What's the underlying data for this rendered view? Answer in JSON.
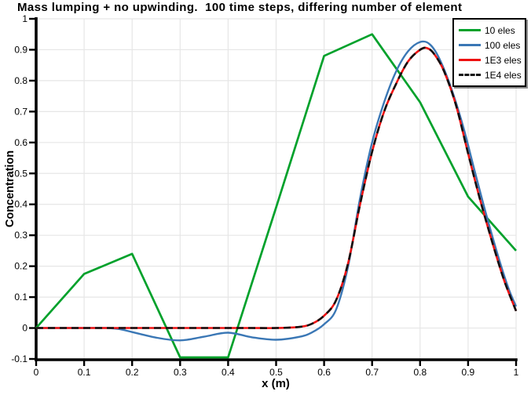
{
  "title": "Mass lumping + no upwinding.  100 time steps, differing number of element",
  "axes": {
    "x": {
      "label": "x (m)"
    },
    "y": {
      "label": "Concentration"
    }
  },
  "legend": {
    "items": [
      {
        "label": "10 eles",
        "color": "#00a12b",
        "style": "solid"
      },
      {
        "label": "100 eles",
        "color": "#3a77b5",
        "style": "solid"
      },
      {
        "label": "1E3 eles",
        "color": "#ed1111",
        "style": "solid"
      },
      {
        "label": "1E4 eles",
        "color": "#111111",
        "style": "dashed"
      }
    ]
  },
  "chart_data": {
    "type": "line",
    "title": "Mass lumping + no upwinding.  100 time steps, differing number of element",
    "xlabel": "x (m)",
    "ylabel": "Concentration",
    "xlim": [
      0,
      1
    ],
    "ylim": [
      -0.1,
      1.0
    ],
    "grid": true,
    "legend_position": "top-right",
    "x_ticks": [
      {
        "v": 0,
        "label": "0"
      },
      {
        "v": 0.1,
        "label": "0.1"
      },
      {
        "v": 0.2,
        "label": "0.2"
      },
      {
        "v": 0.3,
        "label": "0.3"
      },
      {
        "v": 0.4,
        "label": "0.4"
      },
      {
        "v": 0.5,
        "label": "0.5"
      },
      {
        "v": 0.6,
        "label": "0.6"
      },
      {
        "v": 0.7,
        "label": "0.7"
      },
      {
        "v": 0.8,
        "label": "0.8"
      },
      {
        "v": 0.9,
        "label": "0.9"
      },
      {
        "v": 1,
        "label": "1"
      }
    ],
    "y_ticks": [
      {
        "v": -0.1,
        "label": "-0.1"
      },
      {
        "v": 0,
        "label": "0"
      },
      {
        "v": 0.1,
        "label": "0.1"
      },
      {
        "v": 0.2,
        "label": "0.2"
      },
      {
        "v": 0.3,
        "label": "0.3"
      },
      {
        "v": 0.4,
        "label": "0.4"
      },
      {
        "v": 0.5,
        "label": "0.5"
      },
      {
        "v": 0.6,
        "label": "0.6"
      },
      {
        "v": 0.7,
        "label": "0.7"
      },
      {
        "v": 0.8,
        "label": "0.8"
      },
      {
        "v": 0.9,
        "label": "0.9"
      },
      {
        "v": 1,
        "label": "1"
      }
    ],
    "series": [
      {
        "name": "10 eles",
        "color": "#00a12b",
        "style": "solid",
        "smooth": false,
        "width": 2.7,
        "points": [
          [
            0,
            0
          ],
          [
            0.1,
            0.175
          ],
          [
            0.2,
            0.24
          ],
          [
            0.3,
            -0.095
          ],
          [
            0.4,
            -0.095
          ],
          [
            0.5,
            0.39
          ],
          [
            0.6,
            0.88
          ],
          [
            0.7,
            0.95
          ],
          [
            0.8,
            0.73
          ],
          [
            0.9,
            0.425
          ],
          [
            1,
            0.25
          ]
        ]
      },
      {
        "name": "100 eles",
        "color": "#3a77b5",
        "style": "solid",
        "smooth": true,
        "width": 2.4,
        "points": [
          [
            0,
            0
          ],
          [
            0.05,
            0
          ],
          [
            0.1,
            0
          ],
          [
            0.15,
            0
          ],
          [
            0.175,
            -0.004
          ],
          [
            0.2,
            -0.013
          ],
          [
            0.25,
            -0.031
          ],
          [
            0.3,
            -0.04
          ],
          [
            0.35,
            -0.028
          ],
          [
            0.4,
            -0.015
          ],
          [
            0.45,
            -0.03
          ],
          [
            0.5,
            -0.038
          ],
          [
            0.55,
            -0.028
          ],
          [
            0.575,
            -0.014
          ],
          [
            0.6,
            0.012
          ],
          [
            0.625,
            0.06
          ],
          [
            0.65,
            0.2
          ],
          [
            0.675,
            0.42
          ],
          [
            0.7,
            0.6
          ],
          [
            0.725,
            0.73
          ],
          [
            0.75,
            0.83
          ],
          [
            0.775,
            0.895
          ],
          [
            0.8,
            0.925
          ],
          [
            0.82,
            0.918
          ],
          [
            0.84,
            0.872
          ],
          [
            0.865,
            0.775
          ],
          [
            0.89,
            0.65
          ],
          [
            0.915,
            0.5
          ],
          [
            0.94,
            0.355
          ],
          [
            0.965,
            0.22
          ],
          [
            0.985,
            0.125
          ],
          [
            1,
            0.07
          ]
        ]
      },
      {
        "name": "1E3 eles",
        "color": "#ed1111",
        "style": "solid",
        "smooth": true,
        "width": 2.6,
        "points": [
          [
            0,
            0
          ],
          [
            0.05,
            0
          ],
          [
            0.1,
            0
          ],
          [
            0.15,
            0
          ],
          [
            0.2,
            0
          ],
          [
            0.25,
            0
          ],
          [
            0.3,
            0
          ],
          [
            0.35,
            0
          ],
          [
            0.4,
            0
          ],
          [
            0.45,
            0
          ],
          [
            0.5,
            0
          ],
          [
            0.55,
            0.004
          ],
          [
            0.575,
            0.014
          ],
          [
            0.6,
            0.04
          ],
          [
            0.625,
            0.09
          ],
          [
            0.65,
            0.21
          ],
          [
            0.675,
            0.4
          ],
          [
            0.7,
            0.57
          ],
          [
            0.725,
            0.7
          ],
          [
            0.75,
            0.79
          ],
          [
            0.775,
            0.862
          ],
          [
            0.8,
            0.9
          ],
          [
            0.815,
            0.905
          ],
          [
            0.83,
            0.885
          ],
          [
            0.85,
            0.83
          ],
          [
            0.875,
            0.72
          ],
          [
            0.9,
            0.565
          ],
          [
            0.925,
            0.415
          ],
          [
            0.95,
            0.28
          ],
          [
            0.975,
            0.155
          ],
          [
            1,
            0.055
          ]
        ]
      },
      {
        "name": "1E4 eles",
        "color": "#111111",
        "style": "dashed",
        "smooth": true,
        "width": 2.6,
        "points": [
          [
            0,
            0
          ],
          [
            0.05,
            0
          ],
          [
            0.1,
            0
          ],
          [
            0.15,
            0
          ],
          [
            0.2,
            0
          ],
          [
            0.25,
            0
          ],
          [
            0.3,
            0
          ],
          [
            0.35,
            0
          ],
          [
            0.4,
            0
          ],
          [
            0.45,
            0
          ],
          [
            0.5,
            0
          ],
          [
            0.55,
            0.004
          ],
          [
            0.575,
            0.014
          ],
          [
            0.6,
            0.04
          ],
          [
            0.625,
            0.09
          ],
          [
            0.65,
            0.21
          ],
          [
            0.675,
            0.4
          ],
          [
            0.7,
            0.57
          ],
          [
            0.725,
            0.7
          ],
          [
            0.75,
            0.79
          ],
          [
            0.775,
            0.862
          ],
          [
            0.8,
            0.9
          ],
          [
            0.815,
            0.905
          ],
          [
            0.83,
            0.885
          ],
          [
            0.85,
            0.83
          ],
          [
            0.875,
            0.72
          ],
          [
            0.9,
            0.565
          ],
          [
            0.925,
            0.415
          ],
          [
            0.95,
            0.28
          ],
          [
            0.975,
            0.155
          ],
          [
            1,
            0.055
          ]
        ]
      }
    ]
  },
  "colors": {
    "grid": "#e6e6e6",
    "axis": "#000000",
    "background": "#ffffff"
  }
}
